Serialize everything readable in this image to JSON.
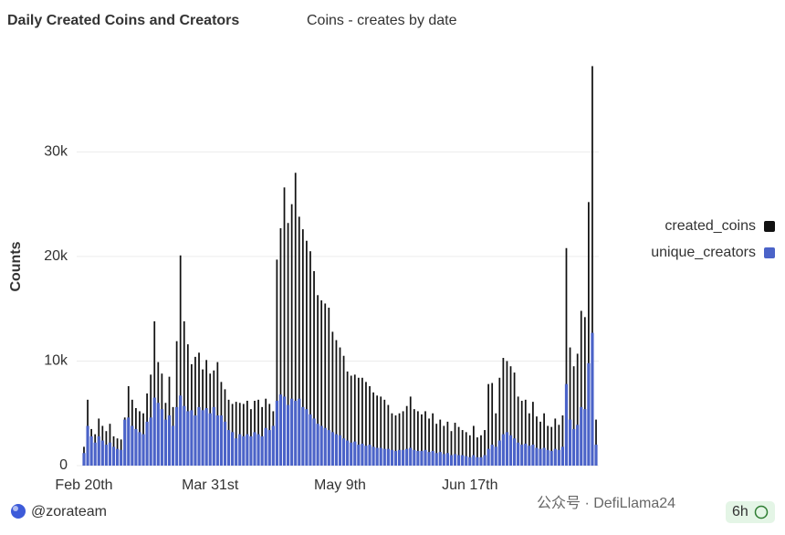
{
  "chart_data": {
    "type": "bar",
    "title": "Daily Created Coins and Creators",
    "subtitle": "Coins - creates by date",
    "y_label": "Counts",
    "categories": [
      "Feb 20th",
      null,
      null,
      null,
      null,
      null,
      null,
      null,
      null,
      null,
      null,
      null,
      null,
      null,
      null,
      null,
      null,
      null,
      null,
      null,
      null,
      null,
      null,
      null,
      null,
      null,
      null,
      null,
      null,
      null,
      null,
      null,
      null,
      null,
      "Mar 31st",
      null,
      null,
      null,
      null,
      null,
      null,
      null,
      null,
      null,
      null,
      null,
      null,
      null,
      null,
      null,
      null,
      null,
      null,
      null,
      null,
      null,
      null,
      null,
      null,
      null,
      null,
      null,
      null,
      null,
      null,
      null,
      null,
      null,
      null,
      "May 9th",
      null,
      null,
      null,
      null,
      null,
      null,
      null,
      null,
      null,
      null,
      null,
      null,
      null,
      null,
      null,
      null,
      null,
      null,
      null,
      null,
      null,
      null,
      null,
      null,
      null,
      null,
      null,
      null,
      null,
      null,
      null,
      null,
      null,
      null,
      "Jun 17th",
      null,
      null,
      null,
      null,
      null,
      null,
      null,
      null,
      null,
      null,
      null,
      null,
      null,
      null,
      null,
      null,
      null,
      null,
      null,
      null,
      null,
      null,
      null,
      null,
      null,
      null,
      null,
      null,
      null,
      null,
      null,
      null,
      null,
      null
    ],
    "series": [
      {
        "name": "created_coins",
        "color": "#111111",
        "values": [
          1800,
          6300,
          3500,
          3000,
          4500,
          3800,
          3300,
          4000,
          2800,
          2600,
          2500,
          4600,
          7600,
          6300,
          5500,
          5200,
          5000,
          6900,
          8700,
          13800,
          9900,
          8800,
          6000,
          8500,
          5600,
          11900,
          20100,
          13800,
          11600,
          9700,
          10400,
          10800,
          9200,
          10100,
          8800,
          9100,
          9900,
          8000,
          7300,
          6300,
          5900,
          6100,
          6000,
          5900,
          6200,
          5400,
          6200,
          6300,
          5600,
          6400,
          5900,
          5200,
          19700,
          22700,
          26600,
          23200,
          25000,
          28000,
          23800,
          22600,
          21500,
          20500,
          18600,
          16300,
          15800,
          15500,
          15100,
          12800,
          12000,
          11300,
          10500,
          9000,
          8600,
          8700,
          8400,
          8400,
          8000,
          7600,
          7000,
          6700,
          6600,
          6300,
          5800,
          5000,
          4800,
          5000,
          5200,
          5700,
          6600,
          5400,
          5200,
          4900,
          5200,
          4500,
          5000,
          4000,
          4400,
          3800,
          4200,
          3300,
          4100,
          3700,
          3400,
          3200,
          2900,
          3800,
          2700,
          2900,
          3400,
          7800,
          7900,
          5000,
          8400,
          10300,
          10000,
          9500,
          8900,
          6600,
          6200,
          6300,
          5000,
          6100,
          4700,
          4200,
          5000,
          3800,
          3700,
          4500,
          3900,
          4800,
          20800,
          11300,
          9500,
          10700,
          14800,
          14200,
          25200,
          38200,
          4400
        ]
      },
      {
        "name": "unique_creators",
        "color": "#4b63c8",
        "values": [
          1200,
          3800,
          2800,
          2200,
          2800,
          2400,
          2000,
          2200,
          1800,
          1600,
          1500,
          4400,
          4600,
          3800,
          3500,
          3200,
          3000,
          4200,
          4600,
          6500,
          6000,
          5400,
          4400,
          4800,
          3800,
          5600,
          6700,
          5700,
          5200,
          5300,
          4800,
          5600,
          5300,
          5500,
          5000,
          5600,
          4800,
          4800,
          4200,
          3400,
          3200,
          2600,
          3000,
          2800,
          3000,
          2800,
          3200,
          3000,
          2800,
          3600,
          3400,
          3800,
          6200,
          6800,
          6600,
          5800,
          6400,
          6200,
          6400,
          5600,
          5400,
          4900,
          4500,
          4000,
          3800,
          3600,
          3400,
          3200,
          3000,
          2900,
          2600,
          2400,
          2200,
          2300,
          2000,
          2100,
          1900,
          2000,
          1800,
          1700,
          1700,
          1600,
          1600,
          1500,
          1400,
          1500,
          1500,
          1600,
          1700,
          1500,
          1400,
          1400,
          1500,
          1300,
          1400,
          1200,
          1300,
          1100,
          1200,
          1000,
          1100,
          1000,
          1000,
          900,
          800,
          1000,
          800,
          800,
          1000,
          1600,
          2000,
          1800,
          2400,
          3000,
          3200,
          2900,
          2600,
          2200,
          2000,
          2100,
          1900,
          2000,
          1700,
          1600,
          1700,
          1500,
          1400,
          1600,
          1500,
          1800,
          7800,
          4400,
          3500,
          3900,
          5600,
          5400,
          9800,
          12700,
          2000
        ]
      }
    ],
    "ylim": [
      0,
      38500
    ],
    "yticks": [
      0,
      {
        "value": 10000,
        "label": "10k"
      },
      {
        "value": 20000,
        "label": "20k"
      },
      {
        "value": 30000,
        "label": "30k"
      }
    ],
    "grid": true,
    "legend": "right"
  },
  "footer": {
    "account": "@zorateam",
    "menu": "...",
    "refresh": "6h",
    "watermark": "公众号 · DefiLlama24"
  }
}
